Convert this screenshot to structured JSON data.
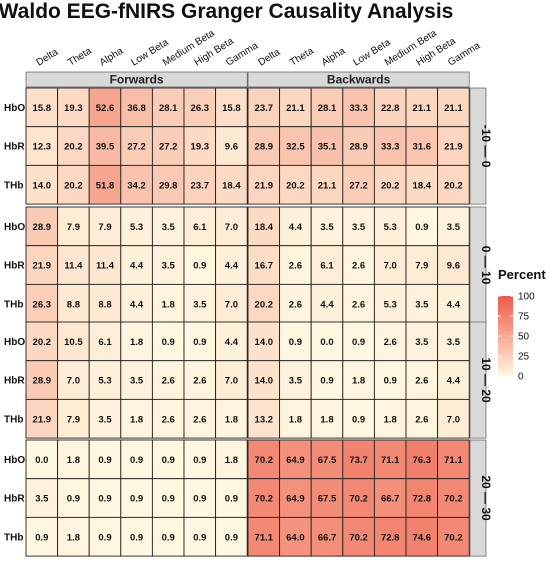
{
  "chart_data": {
    "type": "heatmap",
    "title": "Waldo EEG-fNIRS Granger Causality Analysis",
    "columns": [
      "Delta",
      "Theta",
      "Alpha",
      "Low Beta",
      "Medium Beta",
      "High Beta",
      "Gamma"
    ],
    "rows": [
      "HbO",
      "HbR",
      "THb"
    ],
    "directions": [
      "Forwards",
      "Backwards"
    ],
    "lags": [
      "-10 — 0",
      "0 — 10",
      "10 — 20",
      "20 — 30"
    ],
    "legend": {
      "title": "Percent",
      "ticks": [
        100,
        75,
        50,
        25,
        0
      ],
      "range": [
        0,
        100
      ],
      "low_color": "#FFF8E1",
      "high_color": "#EE5A46"
    },
    "panels": [
      {
        "lag": "-10 — 0",
        "forwards": [
          [
            15.8,
            19.3,
            52.6,
            36.8,
            28.1,
            26.3,
            15.8
          ],
          [
            12.3,
            20.2,
            39.5,
            27.2,
            27.2,
            19.3,
            9.6
          ],
          [
            14.0,
            20.2,
            51.8,
            34.2,
            29.8,
            23.7,
            18.4
          ]
        ],
        "backwards": [
          [
            23.7,
            21.1,
            28.1,
            33.3,
            22.8,
            21.1,
            21.1
          ],
          [
            28.9,
            32.5,
            35.1,
            28.9,
            33.3,
            31.6,
            21.9
          ],
          [
            21.9,
            20.2,
            21.1,
            27.2,
            20.2,
            18.4,
            20.2
          ]
        ]
      },
      {
        "lag": "0 — 10",
        "forwards": [
          [
            28.9,
            7.9,
            7.9,
            5.3,
            3.5,
            6.1,
            7.0
          ],
          [
            21.9,
            11.4,
            11.4,
            4.4,
            3.5,
            0.9,
            4.4
          ],
          [
            26.3,
            8.8,
            8.8,
            4.4,
            1.8,
            3.5,
            7.0
          ]
        ],
        "backwards": [
          [
            18.4,
            4.4,
            3.5,
            3.5,
            5.3,
            0.9,
            3.5
          ],
          [
            16.7,
            2.6,
            6.1,
            2.6,
            7.0,
            7.9,
            9.6
          ],
          [
            20.2,
            2.6,
            4.4,
            2.6,
            5.3,
            3.5,
            4.4
          ]
        ]
      },
      {
        "lag": "10 — 20",
        "forwards": [
          [
            20.2,
            10.5,
            6.1,
            1.8,
            0.9,
            0.9,
            4.4
          ],
          [
            28.9,
            7.0,
            5.3,
            3.5,
            2.6,
            2.6,
            7.0
          ],
          [
            21.9,
            7.9,
            3.5,
            1.8,
            2.6,
            2.6,
            1.8
          ]
        ],
        "backwards": [
          [
            14.0,
            0.9,
            0.0,
            0.9,
            2.6,
            3.5,
            3.5
          ],
          [
            14.0,
            3.5,
            0.9,
            1.8,
            0.9,
            2.6,
            4.4
          ],
          [
            13.2,
            1.8,
            1.8,
            0.9,
            1.8,
            2.6,
            7.0
          ]
        ]
      },
      {
        "lag": "20 — 30",
        "forwards": [
          [
            0.0,
            1.8,
            0.9,
            0.9,
            0.9,
            0.9,
            1.8
          ],
          [
            3.5,
            0.9,
            0.9,
            0.9,
            0.9,
            0.9,
            0.9
          ],
          [
            0.9,
            1.8,
            0.9,
            0.9,
            0.9,
            0.9,
            0.9
          ]
        ],
        "backwards": [
          [
            70.2,
            64.9,
            67.5,
            73.7,
            71.1,
            76.3,
            71.1
          ],
          [
            70.2,
            64.9,
            67.5,
            70.2,
            66.7,
            72.8,
            70.2
          ],
          [
            71.1,
            64.0,
            66.7,
            70.2,
            72.8,
            74.6,
            70.2
          ]
        ]
      }
    ]
  }
}
